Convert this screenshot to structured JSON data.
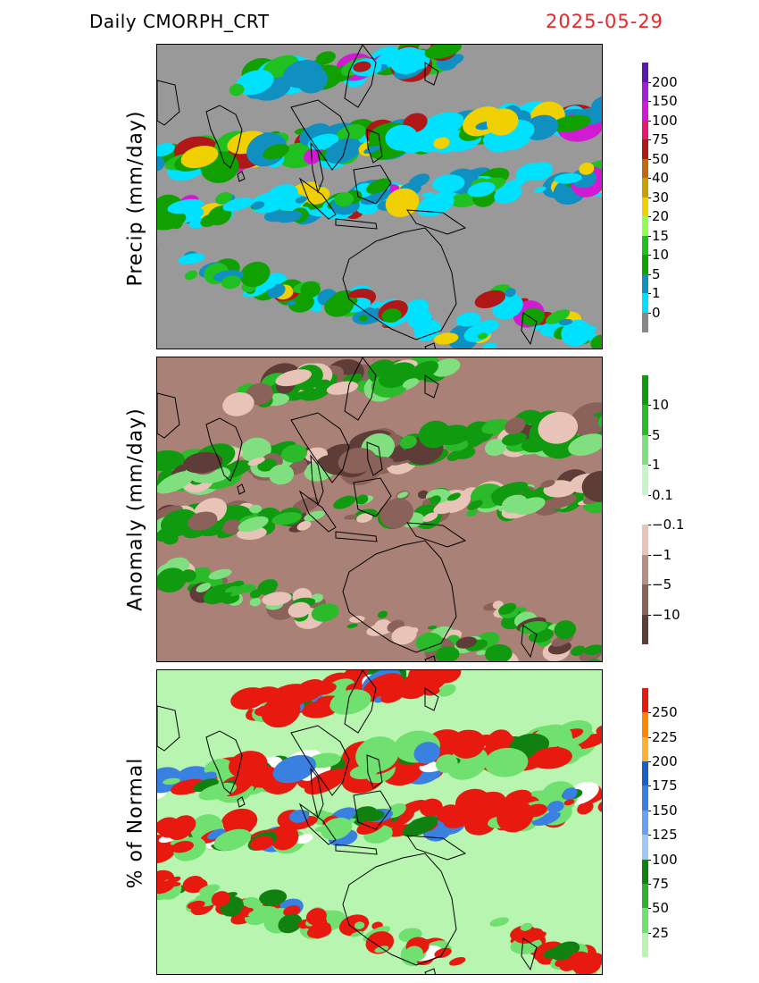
{
  "header": {
    "title": "Daily CMORPH_CRT",
    "date": "2025-05-29",
    "date_color": "#e8272a"
  },
  "panels": [
    {
      "id": "precip",
      "ylabel": "Precip (mm/day)",
      "background": "#999999",
      "colorbar": {
        "labels": [
          "200",
          "150",
          "100",
          "75",
          "50",
          "40",
          "30",
          "20",
          "15",
          "10",
          "5",
          "1",
          "0"
        ],
        "colors": [
          "#5a1aa8",
          "#a020d8",
          "#d21ad2",
          "#e8186e",
          "#b01818",
          "#c06a10",
          "#c8a000",
          "#f0d000",
          "#90ff50",
          "#20c020",
          "#10a000",
          "#1090c0",
          "#00e0ff",
          "#888888"
        ]
      },
      "palette": [
        "#00e0ff",
        "#1090c0",
        "#10a000",
        "#20c020",
        "#f0d000",
        "#b01818",
        "#d21ad2"
      ]
    },
    {
      "id": "anomaly",
      "ylabel": "Anomaly (mm/day)",
      "background": "#a98176",
      "colorbar": {
        "labels": [
          "10",
          "5",
          "1",
          "0.1",
          "−0.1",
          "−1",
          "−5",
          "−10"
        ],
        "colors": [
          "#109a10",
          "#2aba2a",
          "#80e080",
          "#c8f5c8",
          "#ffffff",
          "#e8c4b8",
          "#b58e84",
          "#8a625a",
          "#5e3c38"
        ]
      },
      "palette": [
        "#109a10",
        "#2aba2a",
        "#80e080",
        "#e8c4b8",
        "#8a625a",
        "#5e3c38"
      ]
    },
    {
      "id": "percent",
      "ylabel": "% of Normal",
      "background": "#b8f5b0",
      "colorbar": {
        "labels": [
          "250",
          "225",
          "200",
          "175",
          "150",
          "125",
          "100",
          "75",
          "50",
          "25"
        ],
        "colors": [
          "#e81a10",
          "#ff8800",
          "#ffb030",
          "#1860c8",
          "#3a80e0",
          "#6aa0f0",
          "#a0c8f8",
          "#108010",
          "#30b030",
          "#70e070",
          "#b8f5b0"
        ]
      },
      "palette": [
        "#e81a10",
        "#3a80e0",
        "#70e070",
        "#108010",
        "#ffffff"
      ]
    }
  ]
}
